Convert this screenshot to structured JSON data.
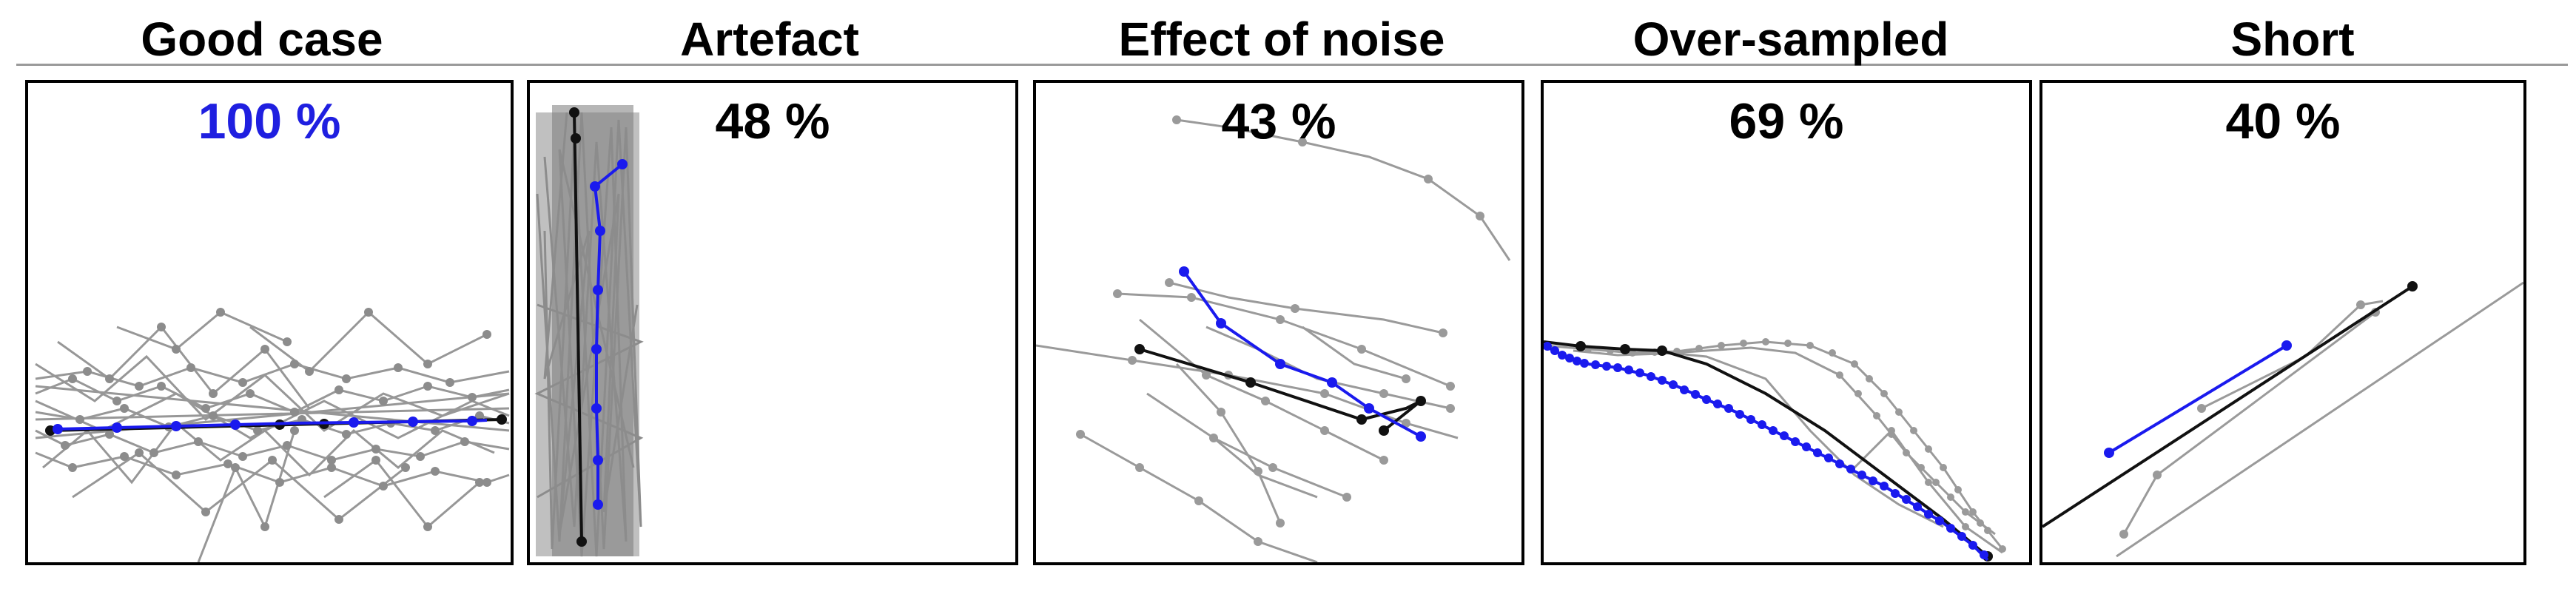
{
  "colors": {
    "best": "#1f1fe0",
    "default_text": "#000000",
    "track_gray": "#8c8c8c",
    "track_black": "#111111",
    "track_blue": "#1a1aee"
  },
  "panels": [
    {
      "title": "Good case",
      "score": "100 %",
      "best": true
    },
    {
      "title": "Artefact",
      "score": "48 %",
      "best": false
    },
    {
      "title": "Effect of noise",
      "score": "43 %",
      "best": false
    },
    {
      "title": "Over-sampled",
      "score": "69 %",
      "best": false
    },
    {
      "title": "Short",
      "score": "40 %",
      "best": false
    }
  ]
}
